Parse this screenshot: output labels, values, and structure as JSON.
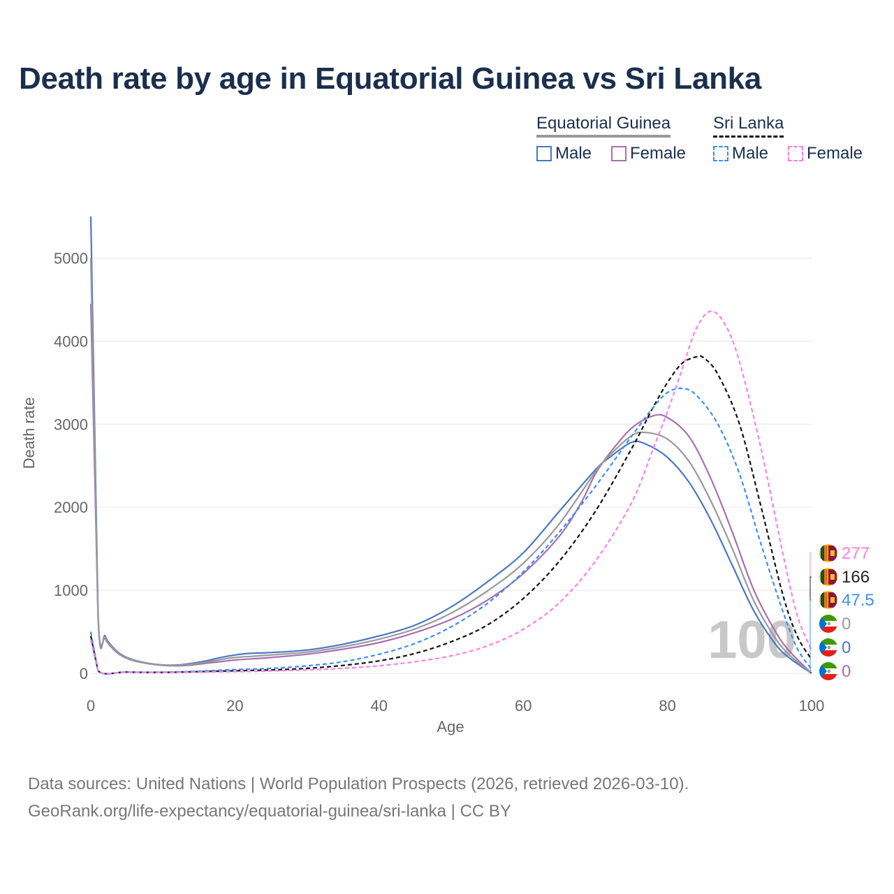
{
  "title": "Death rate by age in Equatorial Guinea vs Sri Lanka",
  "legend": {
    "groups": [
      {
        "name": "Equatorial Guinea",
        "color": "#999999",
        "style": "solid"
      },
      {
        "name": "Sri Lanka",
        "color": "#111111",
        "style": "dashed"
      }
    ],
    "items": [
      {
        "label": "Male",
        "color": "#4a78c2",
        "style": "solid"
      },
      {
        "label": "Female",
        "color": "#a86fb0",
        "style": "solid"
      },
      {
        "label": "Male",
        "color": "#3d8ef0",
        "style": "dashed"
      },
      {
        "label": "Female",
        "color": "#ff7fe3",
        "style": "dashed"
      }
    ]
  },
  "chart_data": {
    "type": "line",
    "title": "Death rate by age in Equatorial Guinea vs Sri Lanka",
    "xlabel": "Age",
    "ylabel": "Death rate",
    "xlim": [
      0,
      100
    ],
    "ylim": [
      0,
      5500
    ],
    "x_ticks": [
      0,
      20,
      40,
      60,
      80,
      100
    ],
    "y_ticks": [
      0,
      1000,
      2000,
      3000,
      4000,
      5000
    ],
    "grid": true,
    "watermark": "100",
    "series": [
      {
        "name": "Equatorial Guinea Male",
        "color": "#4a78c2",
        "dash": "solid",
        "points": [
          [
            0,
            5500
          ],
          [
            1,
            750
          ],
          [
            2,
            450
          ],
          [
            3,
            320
          ],
          [
            4,
            240
          ],
          [
            5,
            190
          ],
          [
            6,
            160
          ],
          [
            8,
            120
          ],
          [
            10,
            100
          ],
          [
            12,
            100
          ],
          [
            14,
            120
          ],
          [
            16,
            150
          ],
          [
            18,
            190
          ],
          [
            20,
            220
          ],
          [
            22,
            240
          ],
          [
            25,
            250
          ],
          [
            30,
            280
          ],
          [
            35,
            350
          ],
          [
            40,
            450
          ],
          [
            45,
            580
          ],
          [
            50,
            800
          ],
          [
            55,
            1100
          ],
          [
            60,
            1450
          ],
          [
            65,
            1950
          ],
          [
            70,
            2450
          ],
          [
            72,
            2600
          ],
          [
            75,
            2780
          ],
          [
            77,
            2760
          ],
          [
            80,
            2600
          ],
          [
            83,
            2300
          ],
          [
            86,
            1850
          ],
          [
            89,
            1300
          ],
          [
            92,
            750
          ],
          [
            95,
            350
          ],
          [
            97,
            180
          ],
          [
            100,
            0
          ]
        ]
      },
      {
        "name": "Equatorial Guinea Female",
        "color": "#a86fb0",
        "dash": "solid",
        "points": [
          [
            0,
            4450
          ],
          [
            1,
            700
          ],
          [
            2,
            420
          ],
          [
            3,
            300
          ],
          [
            4,
            225
          ],
          [
            5,
            180
          ],
          [
            6,
            150
          ],
          [
            8,
            115
          ],
          [
            10,
            95
          ],
          [
            12,
            90
          ],
          [
            14,
            100
          ],
          [
            16,
            120
          ],
          [
            18,
            140
          ],
          [
            20,
            160
          ],
          [
            25,
            190
          ],
          [
            30,
            230
          ],
          [
            35,
            290
          ],
          [
            40,
            370
          ],
          [
            45,
            490
          ],
          [
            50,
            650
          ],
          [
            55,
            880
          ],
          [
            60,
            1200
          ],
          [
            65,
            1650
          ],
          [
            68,
            2050
          ],
          [
            70,
            2400
          ],
          [
            72,
            2650
          ],
          [
            75,
            2950
          ],
          [
            78,
            3100
          ],
          [
            80,
            3080
          ],
          [
            83,
            2850
          ],
          [
            86,
            2350
          ],
          [
            89,
            1700
          ],
          [
            92,
            1000
          ],
          [
            95,
            500
          ],
          [
            97,
            260
          ],
          [
            100,
            0
          ]
        ]
      },
      {
        "name": "Equatorial Guinea Total",
        "color": "#999999",
        "dash": "solid",
        "points": [
          [
            0,
            5000
          ],
          [
            1,
            720
          ],
          [
            2,
            435
          ],
          [
            3,
            310
          ],
          [
            4,
            232
          ],
          [
            5,
            185
          ],
          [
            6,
            155
          ],
          [
            8,
            118
          ],
          [
            10,
            97
          ],
          [
            12,
            95
          ],
          [
            14,
            110
          ],
          [
            16,
            135
          ],
          [
            18,
            165
          ],
          [
            20,
            190
          ],
          [
            25,
            220
          ],
          [
            30,
            255
          ],
          [
            35,
            320
          ],
          [
            40,
            410
          ],
          [
            45,
            535
          ],
          [
            50,
            725
          ],
          [
            55,
            990
          ],
          [
            60,
            1325
          ],
          [
            65,
            1800
          ],
          [
            70,
            2425
          ],
          [
            72,
            2625
          ],
          [
            75,
            2860
          ],
          [
            77,
            2900
          ],
          [
            80,
            2820
          ],
          [
            83,
            2550
          ],
          [
            86,
            2080
          ],
          [
            89,
            1500
          ],
          [
            92,
            870
          ],
          [
            95,
            420
          ],
          [
            97,
            215
          ],
          [
            100,
            0
          ]
        ]
      },
      {
        "name": "Sri Lanka Total",
        "color": "#111111",
        "dash": "dashed",
        "points": [
          [
            0,
            450
          ],
          [
            1,
            30
          ],
          [
            5,
            15
          ],
          [
            10,
            12
          ],
          [
            15,
            20
          ],
          [
            20,
            30
          ],
          [
            25,
            40
          ],
          [
            30,
            60
          ],
          [
            35,
            95
          ],
          [
            40,
            150
          ],
          [
            45,
            240
          ],
          [
            50,
            380
          ],
          [
            55,
            580
          ],
          [
            60,
            900
          ],
          [
            65,
            1350
          ],
          [
            70,
            1950
          ],
          [
            75,
            2700
          ],
          [
            78,
            3200
          ],
          [
            80,
            3500
          ],
          [
            82,
            3730
          ],
          [
            84,
            3810
          ],
          [
            85,
            3800
          ],
          [
            87,
            3600
          ],
          [
            90,
            3000
          ],
          [
            93,
            2000
          ],
          [
            96,
            950
          ],
          [
            98,
            450
          ],
          [
            100,
            166
          ]
        ]
      },
      {
        "name": "Sri Lanka Male",
        "color": "#3d8ef0",
        "dash": "dashed",
        "points": [
          [
            0,
            500
          ],
          [
            1,
            32
          ],
          [
            5,
            16
          ],
          [
            10,
            14
          ],
          [
            15,
            25
          ],
          [
            20,
            45
          ],
          [
            25,
            60
          ],
          [
            30,
            90
          ],
          [
            35,
            140
          ],
          [
            40,
            230
          ],
          [
            45,
            360
          ],
          [
            50,
            560
          ],
          [
            55,
            840
          ],
          [
            60,
            1220
          ],
          [
            65,
            1700
          ],
          [
            70,
            2250
          ],
          [
            75,
            2850
          ],
          [
            78,
            3200
          ],
          [
            80,
            3380
          ],
          [
            82,
            3430
          ],
          [
            84,
            3350
          ],
          [
            87,
            3000
          ],
          [
            90,
            2400
          ],
          [
            93,
            1550
          ],
          [
            96,
            750
          ],
          [
            98,
            300
          ],
          [
            100,
            47.5
          ]
        ]
      },
      {
        "name": "Sri Lanka Female",
        "color": "#ff7fe3",
        "dash": "dashed",
        "points": [
          [
            0,
            400
          ],
          [
            1,
            28
          ],
          [
            5,
            14
          ],
          [
            10,
            11
          ],
          [
            15,
            15
          ],
          [
            20,
            20
          ],
          [
            25,
            28
          ],
          [
            30,
            40
          ],
          [
            35,
            60
          ],
          [
            40,
            90
          ],
          [
            45,
            140
          ],
          [
            50,
            210
          ],
          [
            55,
            330
          ],
          [
            60,
            530
          ],
          [
            65,
            850
          ],
          [
            70,
            1350
          ],
          [
            75,
            2050
          ],
          [
            78,
            2700
          ],
          [
            80,
            3150
          ],
          [
            82,
            3650
          ],
          [
            84,
            4150
          ],
          [
            86,
            4360
          ],
          [
            88,
            4200
          ],
          [
            90,
            3750
          ],
          [
            93,
            2700
          ],
          [
            96,
            1450
          ],
          [
            98,
            700
          ],
          [
            100,
            277
          ]
        ]
      }
    ],
    "end_labels": [
      {
        "value": "277",
        "color": "#ff7fe3",
        "country": "Sri Lanka"
      },
      {
        "value": "166",
        "color": "#222222",
        "country": "Sri Lanka"
      },
      {
        "value": "47.5",
        "color": "#3d8ef0",
        "country": "Sri Lanka"
      },
      {
        "value": "0",
        "color": "#999999",
        "country": "Equatorial Guinea"
      },
      {
        "value": "0",
        "color": "#4a78c2",
        "country": "Equatorial Guinea"
      },
      {
        "value": "0",
        "color": "#a86fb0",
        "country": "Equatorial Guinea"
      }
    ]
  },
  "footer": {
    "line1": "Data sources: United Nations | World Population Prospects (2026, retrieved 2026-03-10).",
    "line2": "GeoRank.org/life-expectancy/equatorial-guinea/sri-lanka | CC BY"
  },
  "colors": {
    "title": "#1b2f4d",
    "grid": "#e6e6e6",
    "axis_text": "#666666"
  }
}
